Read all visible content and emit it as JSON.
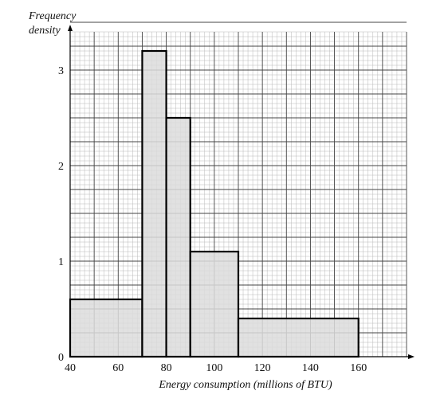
{
  "chart_data": {
    "type": "bar",
    "subtype": "histogram",
    "ylabel_lines": [
      "Frequency",
      "density"
    ],
    "xlabel": "Energy consumption (millions of BTU)",
    "bins": [
      {
        "from": 40,
        "to": 70,
        "density": 0.6
      },
      {
        "from": 70,
        "to": 80,
        "density": 3.2
      },
      {
        "from": 80,
        "to": 90,
        "density": 2.5
      },
      {
        "from": 90,
        "to": 110,
        "density": 1.1
      },
      {
        "from": 110,
        "to": 160,
        "density": 0.4
      }
    ],
    "xlim": [
      40,
      180
    ],
    "ylim": [
      0,
      3.4
    ],
    "x_ticks": [
      "40",
      "60",
      "80",
      "100",
      "120",
      "140",
      "160"
    ],
    "x_tick_values": [
      40,
      60,
      80,
      100,
      120,
      140,
      160
    ],
    "y_ticks": [
      "0",
      "1",
      "2",
      "3"
    ],
    "y_tick_values": [
      0,
      1,
      2,
      3
    ],
    "grid": true,
    "bar_fill": "#dcdcdc",
    "bar_stroke": "#000000",
    "grid_major_color": "#444444",
    "grid_minor_color": "#b8b8b8"
  }
}
